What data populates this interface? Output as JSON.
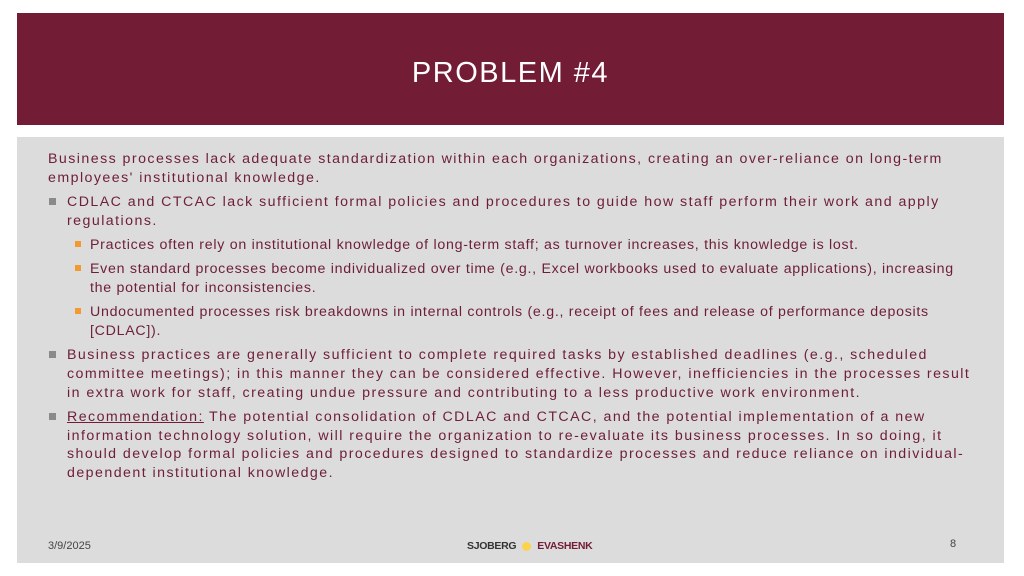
{
  "slide": {
    "title": "PROBLEM #4",
    "colors": {
      "header": "#721c36",
      "text": "#6e1e36",
      "panel": "#dcdcdc",
      "sub_bullet": "#f29a2e",
      "bullet": "#8a8a8a"
    },
    "intro": "Business processes lack adequate standardization within each organizations, creating an over-reliance on long-term employees' institutional knowledge.",
    "bullets": [
      {
        "text": "CDLAC and CTCAC lack sufficient formal policies and procedures to guide how staff perform their work and apply regulations."
      },
      {
        "text": "Practices often rely on institutional knowledge of long-term staff; as turnover increases, this knowledge is lost."
      },
      {
        "text": "Even standard processes become individualized over time (e.g., Excel workbooks used to evaluate applications), increasing the potential for inconsistencies."
      },
      {
        "text": "Undocumented processes risk breakdowns in internal controls (e.g., receipt of fees and release of performance deposits [CDLAC])."
      },
      {
        "text": "Business practices are generally sufficient to complete required tasks by established deadlines (e.g., scheduled committee meetings); in this manner they can be considered effective. However, inefficiencies in the processes result in extra work for staff, creating undue pressure and contributing to a less productive work environment."
      },
      {
        "label": "Recommendation:",
        "text": " The potential consolidation of CDLAC and CTCAC, and the potential implementation of a new information technology solution, will require the organization to re-evaluate its business processes. In so doing, it should develop formal policies and procedures designed to standardize processes and reduce reliance on individual-dependent institutional knowledge."
      }
    ]
  },
  "footer": {
    "date": "3/9/2025",
    "logo_left": "SJOBERG",
    "logo_right": "EVASHENK",
    "page": "8"
  }
}
